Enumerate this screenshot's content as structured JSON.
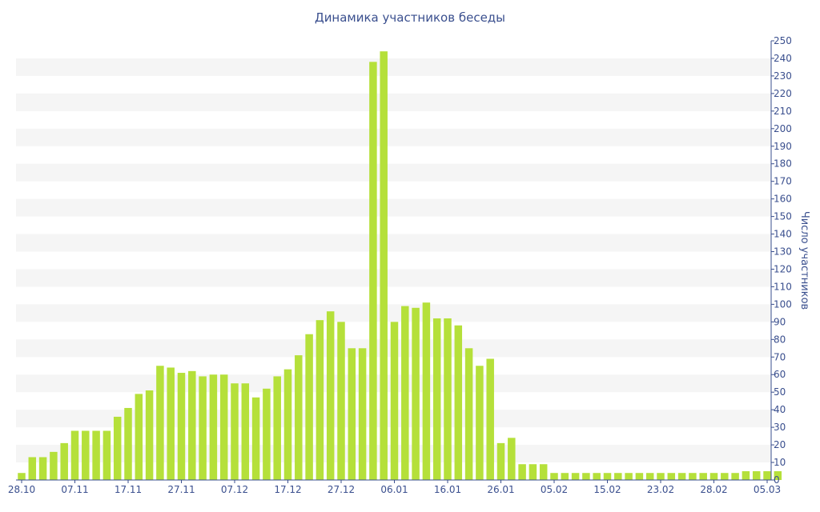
{
  "chart_data": {
    "type": "bar",
    "title": "Динамика участников беседы",
    "xlabel": "",
    "ylabel": "Число участников",
    "ylim": [
      0,
      250
    ],
    "yticks": [
      0,
      10,
      20,
      30,
      40,
      50,
      60,
      70,
      80,
      90,
      100,
      110,
      120,
      130,
      140,
      150,
      160,
      170,
      180,
      190,
      200,
      210,
      220,
      230,
      240,
      250
    ],
    "y_axis_position": "right",
    "grid": "alternating horizontal bands",
    "bar_color": "#b5e03a",
    "band_color": "#f5f5f5",
    "text_color": "#3a4f8e",
    "x_ticks": [
      {
        "label": "28.10",
        "index": 0
      },
      {
        "label": "07.11",
        "index": 5
      },
      {
        "label": "17.11",
        "index": 10
      },
      {
        "label": "27.11",
        "index": 15
      },
      {
        "label": "07.12",
        "index": 20
      },
      {
        "label": "17.12",
        "index": 25
      },
      {
        "label": "27.12",
        "index": 30
      },
      {
        "label": "06.01",
        "index": 35
      },
      {
        "label": "16.01",
        "index": 40
      },
      {
        "label": "26.01",
        "index": 45
      },
      {
        "label": "05.02",
        "index": 50
      },
      {
        "label": "15.02",
        "index": 55
      },
      {
        "label": "23.02",
        "index": 60
      },
      {
        "label": "28.02",
        "index": 65
      },
      {
        "label": "05.03",
        "index": 70
      }
    ],
    "values": [
      4,
      13,
      13,
      16,
      21,
      28,
      28,
      28,
      28,
      36,
      41,
      49,
      51,
      65,
      64,
      61,
      62,
      59,
      60,
      60,
      55,
      55,
      47,
      52,
      59,
      63,
      71,
      83,
      91,
      96,
      90,
      75,
      75,
      238,
      244,
      90,
      99,
      98,
      101,
      92,
      92,
      88,
      75,
      65,
      69,
      21,
      24,
      9,
      9,
      9,
      4,
      4,
      4,
      4,
      4,
      4,
      4,
      4,
      4,
      4,
      4,
      4,
      4,
      4,
      4,
      4,
      4,
      4,
      5,
      5,
      5,
      5
    ]
  }
}
